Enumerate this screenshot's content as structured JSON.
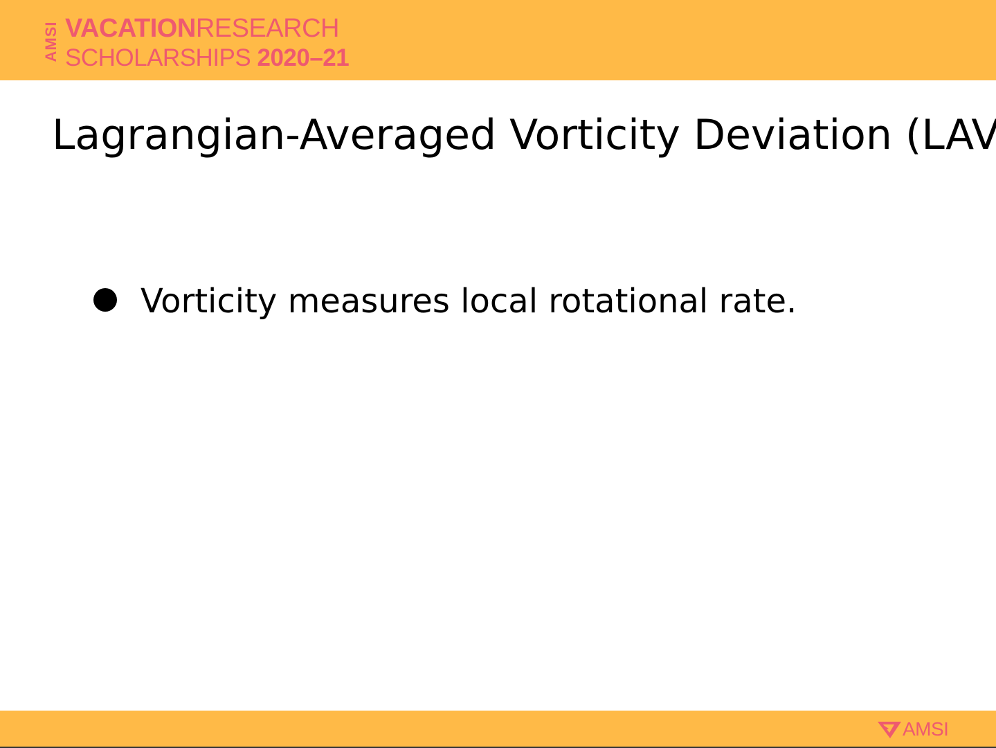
{
  "header": {
    "logo": {
      "vertical_text": "AMSI",
      "line1_bold": "VACATION",
      "line1_light": "RESEARCH",
      "line2_light": "SCHOLARSHIPS",
      "line2_bold": "2020–21"
    }
  },
  "slide": {
    "title": "Lagrangian-Averaged Vorticity Deviation (LAVD)",
    "bullets": [
      {
        "text": "Vorticity measures local rotational rate."
      }
    ]
  },
  "footer": {
    "logo_text": "AMSI",
    "logo_icon": "amsi-arrow-icon"
  },
  "colors": {
    "band": "#FFBA47",
    "brand": "#EE5A6F",
    "text": "#000000",
    "background": "#FFFFFF"
  }
}
